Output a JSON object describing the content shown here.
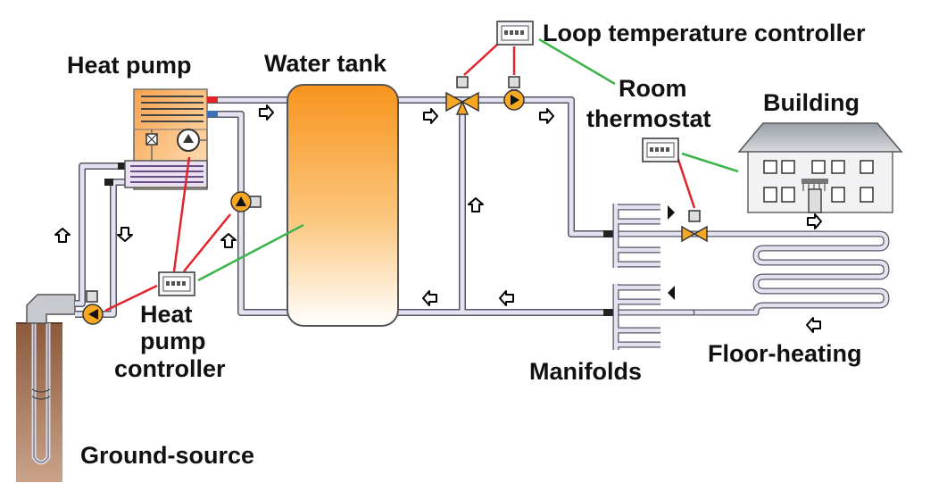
{
  "labels": {
    "heat_pump": "Heat pump",
    "water_tank": "Water tank",
    "loop_controller": "Loop temperature controller",
    "room_line1": "Room",
    "room_line2": "thermostat",
    "building": "Building",
    "hp_ctrl_line1": "Heat",
    "hp_ctrl_line2": "pump",
    "hp_ctrl_line3": "controller",
    "manifolds": "Manifolds",
    "floor_heating": "Floor-heating",
    "ground_source": "Ground-source"
  },
  "colors": {
    "pipe_fill": "#e3e3ef",
    "pipe_edge": "#555566",
    "signal_red": "#e4222a",
    "signal_green": "#3cb44b",
    "tank_top": "#f7941d",
    "tank_bottom": "#ffffff",
    "ground": "#a47456",
    "pump_orange": "#f7a823"
  },
  "icons": {
    "flow_arrow": "hollow-arrow-icon",
    "pump": "circulation-pump-icon",
    "valve": "mixing-valve-icon",
    "controller": "controller-display-icon"
  }
}
